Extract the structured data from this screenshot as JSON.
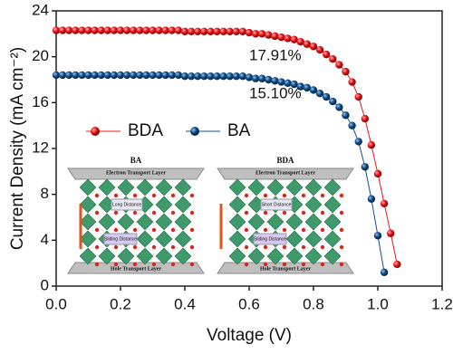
{
  "chart_data": {
    "type": "line",
    "x_label": "Voltage (V)",
    "y_label": "Current Density (mA cm⁻²)",
    "x": [
      0,
      0.02,
      0.04,
      0.06,
      0.08,
      0.1,
      0.12,
      0.14,
      0.16,
      0.18,
      0.2,
      0.22,
      0.24,
      0.26,
      0.28,
      0.3,
      0.32,
      0.34,
      0.36,
      0.38,
      0.4,
      0.42,
      0.44,
      0.46,
      0.48,
      0.5,
      0.52,
      0.54,
      0.56,
      0.58,
      0.6,
      0.62,
      0.64,
      0.66,
      0.68,
      0.7,
      0.72,
      0.74,
      0.76,
      0.78,
      0.8,
      0.82,
      0.84,
      0.86,
      0.88,
      0.9,
      0.92,
      0.94,
      0.96,
      0.98,
      1.0,
      1.02,
      1.04,
      1.06
    ],
    "series": [
      {
        "name": "BDA",
        "color": "#e8161b",
        "values": [
          22.3,
          22.3,
          22.3,
          22.3,
          22.3,
          22.3,
          22.3,
          22.3,
          22.3,
          22.3,
          22.3,
          22.3,
          22.3,
          22.3,
          22.3,
          22.3,
          22.3,
          22.3,
          22.3,
          22.3,
          22.2,
          22.2,
          22.2,
          22.2,
          22.2,
          22.2,
          22.2,
          22.2,
          22.2,
          22.2,
          22.1,
          22.0,
          22.0,
          21.9,
          21.8,
          21.7,
          21.6,
          21.5,
          21.3,
          21.1,
          20.9,
          20.6,
          20.2,
          19.8,
          19.3,
          18.7,
          17.8,
          16.5,
          14.6,
          12.3,
          9.8,
          7.2,
          4.6,
          1.9
        ]
      },
      {
        "name": "BA",
        "color": "#0e4f8c",
        "values": [
          18.4,
          18.4,
          18.4,
          18.4,
          18.4,
          18.4,
          18.4,
          18.4,
          18.4,
          18.4,
          18.4,
          18.4,
          18.4,
          18.4,
          18.4,
          18.4,
          18.4,
          18.4,
          18.4,
          18.4,
          18.3,
          18.3,
          18.3,
          18.3,
          18.3,
          18.3,
          18.3,
          18.3,
          18.3,
          18.3,
          18.2,
          18.1,
          18.1,
          18.0,
          17.9,
          17.8,
          17.7,
          17.6,
          17.4,
          17.3,
          17.1,
          16.8,
          16.5,
          16.1,
          15.6,
          14.9,
          14.0,
          12.6,
          10.4,
          7.6,
          4.4,
          1.2,
          null,
          null
        ]
      }
    ],
    "annotations": [
      "17.91%",
      "15.10%"
    ],
    "xlim": [
      0,
      1.2
    ],
    "xticks": [
      {
        "value": 0,
        "label": "0.0"
      },
      0.2,
      0.4,
      0.6,
      0.8,
      {
        "value": 1,
        "label": "1.0"
      },
      1.2
    ],
    "ylim": [
      0,
      24
    ],
    "yticks": [
      0,
      4,
      8,
      12,
      16,
      20,
      24
    ],
    "legend": "upper left",
    "inset": {
      "panels": [
        {
          "title": "BA",
          "top_layer": "Electron Transport Layer",
          "labels": [
            "Long Distance",
            "Sliding Distance"
          ],
          "bottom_layer": "Hole Transport Layer"
        },
        {
          "title": "BDA",
          "top_layer": "Electron Transport Layer",
          "labels": [
            "Short Distance",
            "Sliding Distance"
          ],
          "bottom_layer": "Hole Transport Layer"
        }
      ]
    }
  }
}
